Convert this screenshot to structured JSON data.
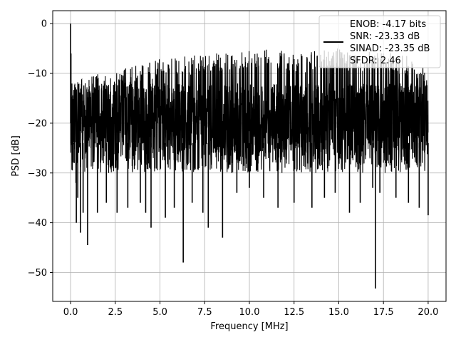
{
  "chart_data": {
    "type": "line",
    "title": "",
    "xlabel": "Frequency [MHz]",
    "ylabel": "PSD [dB]",
    "xlim": [
      -1.0,
      21.0
    ],
    "ylim": [
      -55.8,
      2.6
    ],
    "grid": true,
    "x_ticks": [
      0.0,
      2.5,
      5.0,
      7.5,
      10.0,
      12.5,
      15.0,
      17.5,
      20.0
    ],
    "x_tick_labels": [
      "0.0",
      "2.5",
      "5.0",
      "7.5",
      "10.0",
      "12.5",
      "15.0",
      "17.5",
      "20.0"
    ],
    "y_ticks": [
      0,
      -10,
      -20,
      -30,
      -40,
      -50
    ],
    "y_tick_labels": [
      "0",
      "−10",
      "−20",
      "−30",
      "−40",
      "−50"
    ],
    "legend": {
      "placement": "upper right",
      "series_line_color": "#000000",
      "entries": [
        "ENOB: -4.17 bits",
        "SNR: -23.33 dB",
        "SINAD: -23.35 dB",
        "SFDR: 2.46"
      ]
    },
    "series": [
      {
        "color": "#000000",
        "x": [
          0.0,
          0.02,
          0.05,
          0.1,
          0.2,
          0.3,
          0.32,
          0.4,
          0.55,
          0.7,
          0.95,
          1.5,
          2.0,
          2.6,
          3.2,
          3.9,
          4.2,
          4.5,
          5.3,
          5.8,
          6.3,
          6.8,
          7.4,
          7.7,
          8.5,
          9.3,
          10.0,
          10.8,
          11.6,
          12.5,
          13.5,
          14.2,
          14.8,
          15.6,
          16.2,
          16.9,
          17.05,
          17.3,
          18.2,
          18.9,
          19.5,
          20.0
        ],
        "y": [
          0,
          -6,
          -19,
          -25,
          -28,
          -32,
          -40,
          -35,
          -42,
          -38,
          -44.5,
          -38,
          -36,
          -38,
          -37,
          -36,
          -38,
          -41,
          -39,
          -37,
          -48,
          -36,
          -38,
          -41,
          -43,
          -34,
          -33,
          -35,
          -37,
          -36,
          -37,
          -35,
          -34,
          -38,
          -36,
          -33,
          -53.2,
          -34,
          -35,
          -36,
          -37,
          -38.5
        ]
      }
    ],
    "noise_band": {
      "upper_envelope_x": [
        0.0,
        0.5,
        1.0,
        2.0,
        3.0,
        4.0,
        5.0,
        6.0,
        7.0,
        8.0,
        9.0,
        10.0,
        11.0,
        12.0,
        13.0,
        14.0,
        15.0,
        16.0,
        17.0,
        18.0,
        19.0,
        20.0
      ],
      "upper_envelope_y": [
        -10,
        -11,
        -10,
        -10,
        -9,
        -8,
        -7,
        -7,
        -6,
        -6,
        -6,
        -5,
        -5,
        -5.5,
        -6,
        -5,
        -5,
        -6,
        -5.5,
        -6,
        -6.5,
        -9
      ],
      "typical_high": -12,
      "typical_low": -26,
      "lower_extent": -30
    }
  }
}
